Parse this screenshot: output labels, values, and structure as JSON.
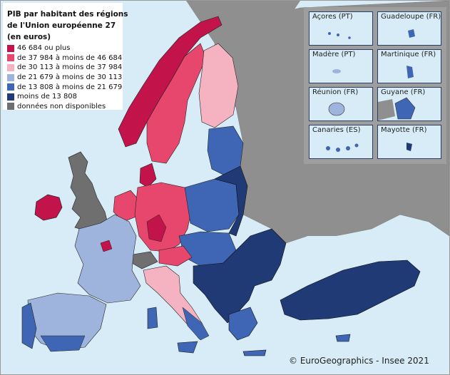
{
  "legend": {
    "title_lines": [
      "PIB par habitant des régions",
      "de l'Union européenne 27",
      "(en euros)"
    ],
    "items": [
      {
        "label": "46 684 ou plus",
        "color": "#c2144a"
      },
      {
        "label": "de 37 984 à moins de 46 684",
        "color": "#e7476c"
      },
      {
        "label": "de 30 113 à moins de 37 984",
        "color": "#f5b3c2"
      },
      {
        "label": "de 21 679 à moins de 30 113",
        "color": "#9fb4dd"
      },
      {
        "label": "de 13 808 à moins de 21 679",
        "color": "#3e66b5"
      },
      {
        "label": "moins de 13 808",
        "color": "#1f3a74"
      },
      {
        "label": "données non disponibles",
        "color": "#6f6f6f"
      }
    ]
  },
  "insets": [
    {
      "label": "Açores (PT)"
    },
    {
      "label": "Guadeloupe (FR)"
    },
    {
      "label": "Madère (PT)"
    },
    {
      "label": "Martinique (FR)"
    },
    {
      "label": "Réunion (FR)"
    },
    {
      "label": "Guyane (FR)"
    },
    {
      "label": "Canaries (ES)"
    },
    {
      "label": "Mayotte (FR)"
    }
  ],
  "copyright": "© EuroGeographics - Insee 2021"
}
